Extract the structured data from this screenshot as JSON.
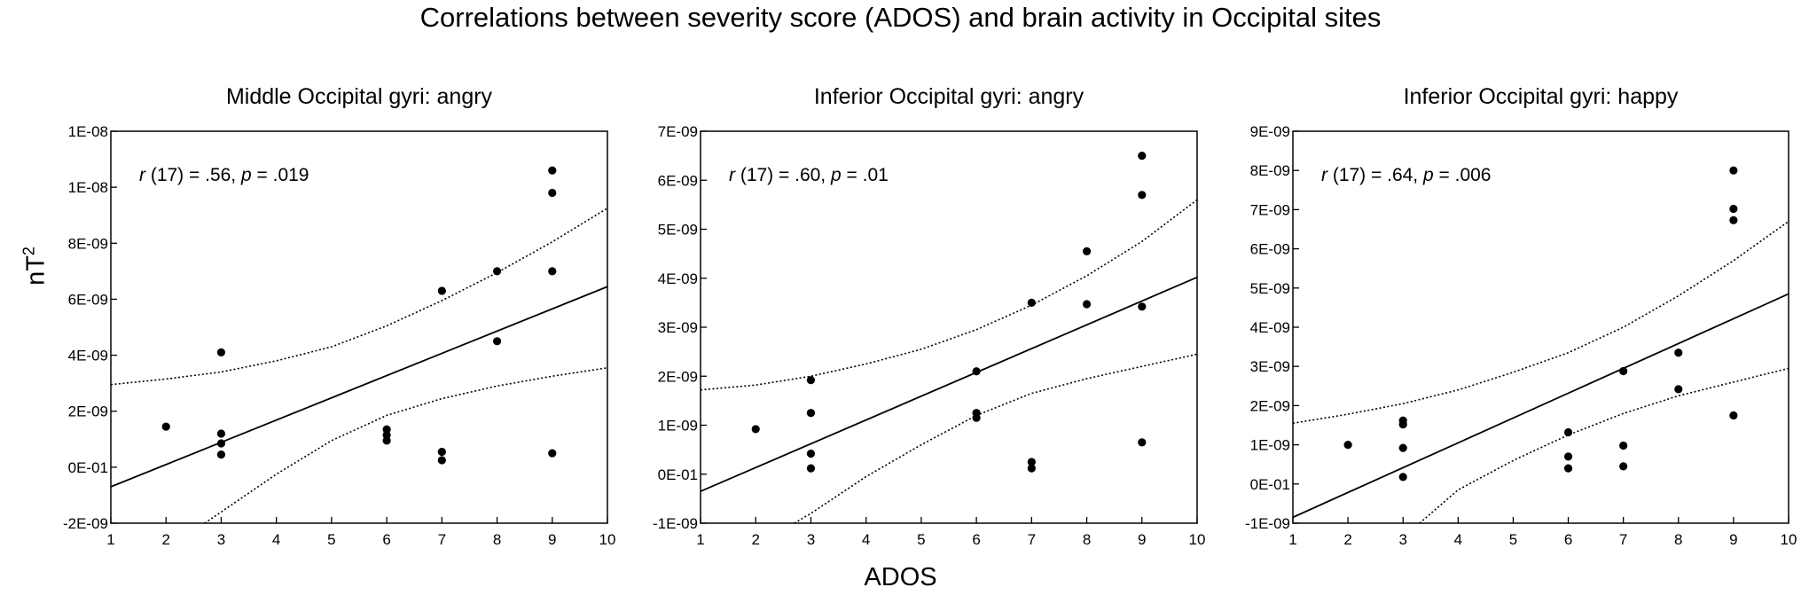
{
  "figure": {
    "title": "Correlations between severity score (ADOS) and brain activity in Occipital sites",
    "ylabel_base": "nT",
    "ylabel_sup": "2",
    "xlabel": "ADOS"
  },
  "chart_data": [
    {
      "type": "scatter",
      "title": "Middle Occipital gyri: angry",
      "annotation": {
        "r_label": "r",
        "r_value": " (17) = .56, ",
        "p_label": "p",
        "p_value": " = .019"
      },
      "xlim": [
        1,
        10
      ],
      "ylim": [
        -2e-09,
        1.2e-08
      ],
      "xticks": [
        "1",
        "2",
        "3",
        "4",
        "5",
        "6",
        "7",
        "8",
        "9",
        "10"
      ],
      "yticks": [
        {
          "v": -2e-09,
          "label": "-2E-09"
        },
        {
          "v": 0,
          "label": "0E-01"
        },
        {
          "v": 2e-09,
          "label": "2E-09"
        },
        {
          "v": 4e-09,
          "label": "4E-09"
        },
        {
          "v": 6e-09,
          "label": "6E-09"
        },
        {
          "v": 8e-09,
          "label": "8E-09"
        },
        {
          "v": 1e-08,
          "label": "1E-08"
        },
        {
          "v": 1.2e-08,
          "label": "1E-08"
        }
      ],
      "points": [
        [
          2,
          1.45e-09
        ],
        [
          3,
          4.1e-09
        ],
        [
          3,
          1.2e-09
        ],
        [
          3,
          8.5e-10
        ],
        [
          3,
          4.5e-10
        ],
        [
          6,
          1.35e-09
        ],
        [
          6,
          1.15e-09
        ],
        [
          6,
          9.5e-10
        ],
        [
          7,
          6.3e-09
        ],
        [
          7,
          5.5e-10
        ],
        [
          7,
          2.5e-10
        ],
        [
          8,
          7e-09
        ],
        [
          8,
          4.5e-09
        ],
        [
          9,
          1.06e-08
        ],
        [
          9,
          9.8e-09
        ],
        [
          9,
          7e-09
        ],
        [
          9,
          5e-10
        ]
      ],
      "fit": {
        "start": [
          1,
          -7e-10
        ],
        "end": [
          10,
          6.45e-09
        ]
      },
      "ci_upper": [
        [
          1,
          2.95e-09
        ],
        [
          2,
          3.15e-09
        ],
        [
          3,
          3.4e-09
        ],
        [
          4,
          3.8e-09
        ],
        [
          5,
          4.3e-09
        ],
        [
          6,
          5.05e-09
        ],
        [
          7,
          5.95e-09
        ],
        [
          8,
          6.95e-09
        ],
        [
          9,
          8.05e-09
        ],
        [
          10,
          9.25e-09
        ]
      ],
      "ci_lower": [
        [
          2.7,
          -2e-09
        ],
        [
          3,
          -1.6e-09
        ],
        [
          4,
          -2.5e-10
        ],
        [
          5,
          9.5e-10
        ],
        [
          6,
          1.85e-09
        ],
        [
          7,
          2.45e-09
        ],
        [
          8,
          2.9e-09
        ],
        [
          9,
          3.25e-09
        ],
        [
          10,
          3.55e-09
        ]
      ]
    },
    {
      "type": "scatter",
      "title": "Inferior Occipital gyri: angry",
      "annotation": {
        "r_label": "r",
        "r_value": " (17) = .60, ",
        "p_label": "p",
        "p_value": " = .01"
      },
      "xlim": [
        1,
        10
      ],
      "ylim": [
        -1e-09,
        7e-09
      ],
      "xticks": [
        "1",
        "2",
        "3",
        "4",
        "5",
        "6",
        "7",
        "8",
        "9",
        "10"
      ],
      "yticks": [
        {
          "v": -1e-09,
          "label": "-1E-09"
        },
        {
          "v": 0,
          "label": "0E-01"
        },
        {
          "v": 1e-09,
          "label": "1E-09"
        },
        {
          "v": 2e-09,
          "label": "2E-09"
        },
        {
          "v": 3e-09,
          "label": "3E-09"
        },
        {
          "v": 4e-09,
          "label": "4E-09"
        },
        {
          "v": 5e-09,
          "label": "5E-09"
        },
        {
          "v": 6e-09,
          "label": "6E-09"
        },
        {
          "v": 7e-09,
          "label": "7E-09"
        }
      ],
      "points": [
        [
          2,
          9.2e-10
        ],
        [
          3,
          1.92e-09
        ],
        [
          3,
          1.25e-09
        ],
        [
          3,
          4.2e-10
        ],
        [
          3,
          1.2e-10
        ],
        [
          6,
          2.1e-09
        ],
        [
          6,
          1.25e-09
        ],
        [
          6,
          1.15e-09
        ],
        [
          7,
          3.5e-09
        ],
        [
          7,
          2.5e-10
        ],
        [
          7,
          1.2e-10
        ],
        [
          8,
          4.55e-09
        ],
        [
          8,
          3.47e-09
        ],
        [
          9,
          6.5e-09
        ],
        [
          9,
          5.7e-09
        ],
        [
          9,
          3.42e-09
        ],
        [
          9,
          6.5e-10
        ]
      ],
      "fit": {
        "start": [
          1,
          -3.5e-10
        ],
        "end": [
          10,
          4.02e-09
        ]
      },
      "ci_upper": [
        [
          1,
          1.72e-09
        ],
        [
          2,
          1.82e-09
        ],
        [
          3,
          2e-09
        ],
        [
          4,
          2.25e-09
        ],
        [
          5,
          2.55e-09
        ],
        [
          6,
          2.95e-09
        ],
        [
          7,
          3.45e-09
        ],
        [
          8,
          4.05e-09
        ],
        [
          9,
          4.75e-09
        ],
        [
          10,
          5.6e-09
        ]
      ],
      "ci_lower": [
        [
          2.7,
          -1e-09
        ],
        [
          3,
          -8e-10
        ],
        [
          4,
          -5e-11
        ],
        [
          5,
          6e-10
        ],
        [
          6,
          1.2e-09
        ],
        [
          7,
          1.65e-09
        ],
        [
          8,
          1.95e-09
        ],
        [
          9,
          2.2e-09
        ],
        [
          10,
          2.45e-09
        ]
      ]
    },
    {
      "type": "scatter",
      "title": "Inferior Occipital gyri: happy",
      "annotation": {
        "r_label": "r",
        "r_value": " (17) = .64, ",
        "p_label": "p",
        "p_value": " = .006"
      },
      "xlim": [
        1,
        10
      ],
      "ylim": [
        -1e-09,
        9e-09
      ],
      "xticks": [
        "1",
        "2",
        "3",
        "4",
        "5",
        "6",
        "7",
        "8",
        "9",
        "10"
      ],
      "yticks": [
        {
          "v": -1e-09,
          "label": "-1E-09"
        },
        {
          "v": 0,
          "label": "0E-01"
        },
        {
          "v": 1e-09,
          "label": "1E-09"
        },
        {
          "v": 2e-09,
          "label": "2E-09"
        },
        {
          "v": 3e-09,
          "label": "3E-09"
        },
        {
          "v": 4e-09,
          "label": "4E-09"
        },
        {
          "v": 5e-09,
          "label": "5E-09"
        },
        {
          "v": 6e-09,
          "label": "6E-09"
        },
        {
          "v": 7e-09,
          "label": "7E-09"
        },
        {
          "v": 8e-09,
          "label": "8E-09"
        },
        {
          "v": 9e-09,
          "label": "9E-09"
        }
      ],
      "points": [
        [
          2,
          1e-09
        ],
        [
          3,
          1.62e-09
        ],
        [
          3,
          1.52e-09
        ],
        [
          3,
          9.2e-10
        ],
        [
          3,
          1.8e-10
        ],
        [
          6,
          1.32e-09
        ],
        [
          6,
          7e-10
        ],
        [
          6,
          4e-10
        ],
        [
          7,
          2.88e-09
        ],
        [
          7,
          9.8e-10
        ],
        [
          7,
          4.5e-10
        ],
        [
          8,
          3.35e-09
        ],
        [
          8,
          2.42e-09
        ],
        [
          9,
          8e-09
        ],
        [
          9,
          7.02e-09
        ],
        [
          9,
          6.73e-09
        ],
        [
          9,
          1.75e-09
        ]
      ],
      "fit": {
        "start": [
          1,
          -8.5e-10
        ],
        "end": [
          10,
          4.85e-09
        ]
      },
      "ci_upper": [
        [
          1,
          1.55e-09
        ],
        [
          2,
          1.78e-09
        ],
        [
          3,
          2.05e-09
        ],
        [
          4,
          2.4e-09
        ],
        [
          5,
          2.85e-09
        ],
        [
          6,
          3.35e-09
        ],
        [
          7,
          4e-09
        ],
        [
          8,
          4.8e-09
        ],
        [
          9,
          5.7e-09
        ],
        [
          10,
          6.7e-09
        ]
      ],
      "ci_lower": [
        [
          3.3,
          -1e-09
        ],
        [
          4,
          -1.5e-10
        ],
        [
          5,
          6e-10
        ],
        [
          6,
          1.25e-09
        ],
        [
          7,
          1.8e-09
        ],
        [
          8,
          2.25e-09
        ],
        [
          9,
          2.6e-09
        ],
        [
          10,
          2.95e-09
        ]
      ]
    }
  ]
}
